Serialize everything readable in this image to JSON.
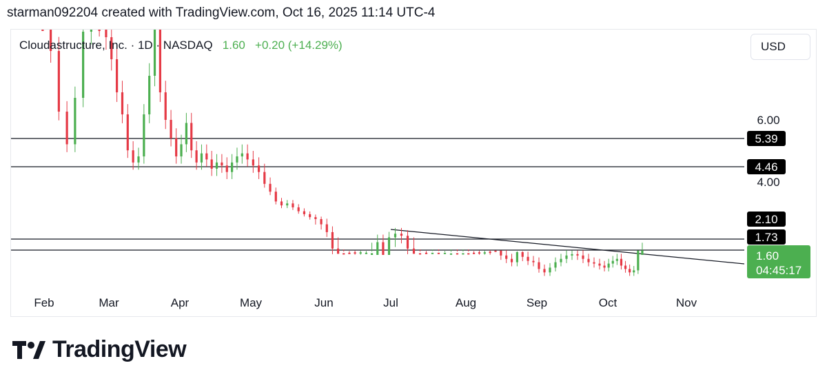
{
  "header": {
    "text": "starman092204 created with TradingView.com, Oct 16, 2025 11:14 UTC-4"
  },
  "legend": {
    "symbol": "Cloudastructure, Inc. · 1D · NASDAQ",
    "price": "1.60",
    "change": "+0.20 (+14.29%)"
  },
  "currency": {
    "label": "USD"
  },
  "brand": {
    "name": "TradingView"
  },
  "colors": {
    "up": "#4caf50",
    "down": "#e53945",
    "line": "#131722",
    "price_label": "#4caf50"
  },
  "chart_data": {
    "type": "candlestick",
    "x_labels": [
      "Feb",
      "Mar",
      "Apr",
      "May",
      "Jun",
      "Jul",
      "Aug",
      "Sep",
      "Oct",
      "Nov"
    ],
    "y_tick_labels": [
      "6.00",
      "4.00"
    ],
    "horizontal_levels": [
      {
        "value": 5.39,
        "label": "5.39"
      },
      {
        "value": 4.46,
        "label": "4.46"
      },
      {
        "value": 1.73,
        "label": "1.73"
      },
      {
        "value": 1.38,
        "label": ""
      }
    ],
    "price_labels": [
      {
        "value": 2.1,
        "label": "2.10"
      }
    ],
    "current_price": {
      "value": 1.6,
      "label": "1.60",
      "countdown": "04:45:17"
    },
    "trendline": {
      "from": {
        "date": "2025-06-30",
        "value": 2.0
      },
      "to": {
        "date": "2025-10-27",
        "value": 0.97
      }
    },
    "approx_close_path": [
      {
        "month": "Feb",
        "values": [
          11.0,
          8.5,
          6.3,
          5.2,
          6.8,
          9.2,
          10.8,
          9.5
        ]
      },
      {
        "month": "Mar",
        "values": [
          9.0,
          8.2,
          7.0,
          6.2,
          5.0,
          4.6,
          4.8,
          6.2,
          7.6,
          9.5,
          7.0,
          6.0,
          5.4
        ]
      },
      {
        "month": "Apr",
        "values": [
          4.8,
          5.2,
          5.9,
          5.0,
          4.6,
          4.9,
          4.7,
          4.4,
          4.6,
          4.5,
          4.3,
          4.6,
          4.8,
          4.9
        ]
      },
      {
        "month": "May",
        "values": [
          4.7,
          4.5,
          4.3,
          3.9,
          3.5,
          3.0,
          2.8,
          2.9,
          2.7,
          2.5,
          2.35,
          2.2,
          2.1
        ]
      },
      {
        "month": "Jun",
        "values": [
          2.0,
          1.85,
          1.65,
          1.55,
          1.52,
          1.5,
          1.48,
          1.5,
          1.52,
          1.6,
          1.7,
          1.6
        ]
      },
      {
        "month": "Jul",
        "values": [
          1.75,
          1.82,
          1.78,
          1.65,
          1.55,
          1.52,
          1.5,
          1.55,
          1.5,
          1.53,
          1.55,
          1.52
        ]
      },
      {
        "month": "Aug",
        "values": [
          1.55,
          1.52,
          1.5,
          1.48,
          1.5,
          1.45,
          1.4,
          1.3,
          1.25,
          1.2,
          1.35,
          1.28,
          1.22
        ]
      },
      {
        "month": "Sep",
        "values": [
          1.2,
          1.1,
          1.05,
          1.12,
          1.2,
          1.25,
          1.3,
          1.32,
          1.3,
          1.25,
          1.2,
          1.18,
          1.15
        ]
      },
      {
        "month": "Oct",
        "values": [
          1.12,
          1.18,
          1.22,
          1.25,
          1.15,
          1.1,
          1.05,
          1.08,
          1.4,
          1.6
        ]
      }
    ]
  }
}
